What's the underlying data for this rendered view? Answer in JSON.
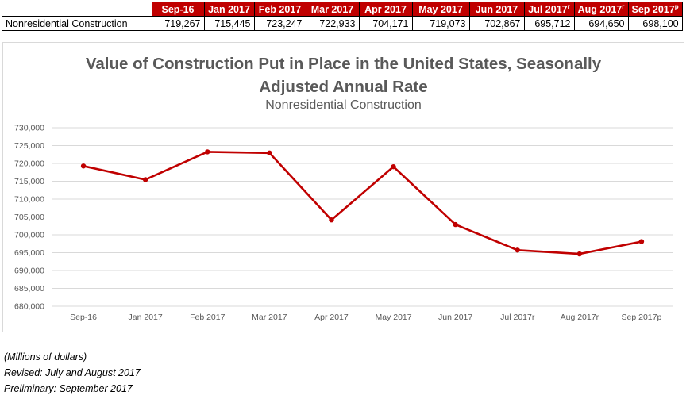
{
  "table": {
    "headers": [
      "Sep-16",
      "Jan 2017",
      "Feb 2017",
      "Mar 2017",
      "Apr 2017",
      "May 2017",
      "Jun 2017",
      "Jul 2017",
      "Aug 2017",
      "Sep 2017"
    ],
    "header_marks": [
      "",
      "",
      "",
      "",
      "",
      "",
      "",
      "r",
      "r",
      "p"
    ],
    "row_label": "Nonresidential Construction",
    "row_values": [
      "719,267",
      "715,445",
      "723,247",
      "722,933",
      "704,171",
      "719,073",
      "702,867",
      "695,712",
      "694,650",
      "698,100"
    ]
  },
  "chart_data": {
    "type": "line",
    "title": "Value of Construction Put in Place in the United States, Seasonally Adjusted Annual Rate",
    "subtitle": "Nonresidential Construction",
    "categories": [
      "Sep-16",
      "Jan 2017",
      "Feb 2017",
      "Mar 2017",
      "Apr 2017",
      "May 2017",
      "Jun 2017",
      "Jul 2017r",
      "Aug 2017r",
      "Sep 2017p"
    ],
    "series": [
      {
        "values": [
          719267,
          715445,
          723247,
          722933,
          704171,
          719073,
          702867,
          695712,
          694650,
          698100
        ]
      }
    ],
    "ylim": [
      680000,
      730000
    ],
    "ytick_step": 5000,
    "ytick_labels": [
      "680,000",
      "685,000",
      "690,000",
      "695,000",
      "700,000",
      "705,000",
      "710,000",
      "715,000",
      "720,000",
      "725,000",
      "730,000"
    ],
    "grid": true,
    "legend": "none",
    "line_color": "#C00000"
  },
  "notes": [
    "(Millions of dollars)",
    "Revised: July and August 2017",
    "Preliminary: September 2017"
  ]
}
